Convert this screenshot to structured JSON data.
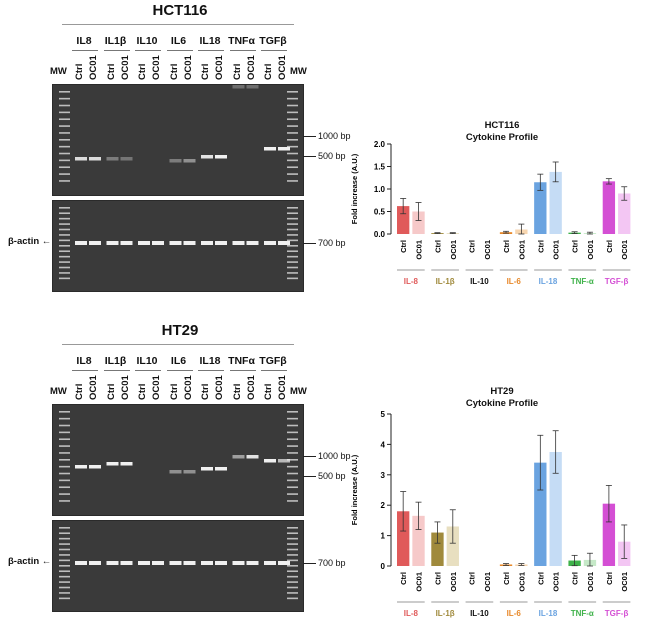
{
  "panels": [
    {
      "title": "HCT116",
      "genes": [
        "IL8",
        "IL1β",
        "IL10",
        "IL6",
        "IL18",
        "TNFα",
        "TGFβ"
      ],
      "lanes": [
        "Ctrl",
        "OC01"
      ],
      "mw_label": "MW",
      "bp_labels": [
        "1000 bp",
        "500 bp"
      ],
      "actin_label": "β-actin",
      "actin_bp": "700 bp"
    },
    {
      "title": "HT29",
      "genes": [
        "IL8",
        "IL1β",
        "IL10",
        "IL6",
        "IL18",
        "TNFα",
        "TGFβ"
      ],
      "lanes": [
        "Ctrl",
        "OC01"
      ],
      "mw_label": "MW",
      "bp_labels": [
        "1000 bp",
        "500 bp"
      ],
      "actin_label": "β-actin",
      "actin_bp": "700 bp"
    }
  ],
  "chart_data": [
    {
      "type": "bar",
      "title": "HCT116\nCytokine Profile",
      "ylabel": "Fold increase (A.U.)",
      "ylim": [
        0,
        2.0
      ],
      "yticks": [
        "0.0",
        "0.5",
        "1.0",
        "1.5",
        "2.0"
      ],
      "ytick_values": [
        0,
        0.5,
        1.0,
        1.5,
        2.0
      ],
      "bar_labels": [
        "Ctrl",
        "OC01"
      ],
      "groups": [
        {
          "name": "IL-8",
          "color": "#e05a5a",
          "light": "#f6c9c9",
          "values": [
            0.62,
            0.5
          ],
          "errors": [
            0.17,
            0.2
          ]
        },
        {
          "name": "IL-1β",
          "color": "#a08a3c",
          "light": "#e8dfc0",
          "values": [
            0.02,
            0.02
          ],
          "errors": [
            0.01,
            0.01
          ]
        },
        {
          "name": "IL-10",
          "color": "#111111",
          "light": "#777777",
          "values": [
            0,
            0
          ],
          "errors": [
            0,
            0
          ]
        },
        {
          "name": "IL-6",
          "color": "#e8892a",
          "light": "#f7d6b0",
          "values": [
            0.04,
            0.1
          ],
          "errors": [
            0.02,
            0.12
          ]
        },
        {
          "name": "IL-18",
          "color": "#6aa3e0",
          "light": "#c5dcf5",
          "values": [
            1.15,
            1.38
          ],
          "errors": [
            0.18,
            0.22
          ]
        },
        {
          "name": "TNF-α",
          "color": "#3fb24a",
          "light": "#c6e9c8",
          "values": [
            0.03,
            0.02
          ],
          "errors": [
            0.02,
            0.02
          ]
        },
        {
          "name": "TGF-β",
          "color": "#d44fd4",
          "light": "#f3c6f3",
          "values": [
            1.17,
            0.9
          ],
          "errors": [
            0.06,
            0.15
          ]
        }
      ]
    },
    {
      "type": "bar",
      "title": "HT29\nCytokine Profile",
      "ylabel": "Fold increase (A.U.)",
      "ylim": [
        0,
        5
      ],
      "yticks": [
        "0",
        "1",
        "2",
        "3",
        "4",
        "5"
      ],
      "ytick_values": [
        0,
        1,
        2,
        3,
        4,
        5
      ],
      "bar_labels": [
        "Ctrl",
        "OC01"
      ],
      "groups": [
        {
          "name": "IL-8",
          "color": "#e05a5a",
          "light": "#f6c9c9",
          "values": [
            1.8,
            1.65
          ],
          "errors": [
            0.65,
            0.45
          ]
        },
        {
          "name": "IL-1β",
          "color": "#a08a3c",
          "light": "#e8dfc0",
          "values": [
            1.1,
            1.3
          ],
          "errors": [
            0.35,
            0.55
          ]
        },
        {
          "name": "IL-10",
          "color": "#111111",
          "light": "#777777",
          "values": [
            0,
            0
          ],
          "errors": [
            0,
            0
          ]
        },
        {
          "name": "IL-6",
          "color": "#e8892a",
          "light": "#f7d6b0",
          "values": [
            0.05,
            0.05
          ],
          "errors": [
            0.03,
            0.03
          ]
        },
        {
          "name": "IL-18",
          "color": "#6aa3e0",
          "light": "#c5dcf5",
          "values": [
            3.4,
            3.75
          ],
          "errors": [
            0.9,
            0.7
          ]
        },
        {
          "name": "TNF-α",
          "color": "#3fb24a",
          "light": "#c6e9c8",
          "values": [
            0.18,
            0.2
          ],
          "errors": [
            0.17,
            0.22
          ]
        },
        {
          "name": "TGF-β",
          "color": "#d44fd4",
          "light": "#f3c6f3",
          "values": [
            2.05,
            0.8
          ],
          "errors": [
            0.6,
            0.55
          ]
        }
      ]
    }
  ]
}
